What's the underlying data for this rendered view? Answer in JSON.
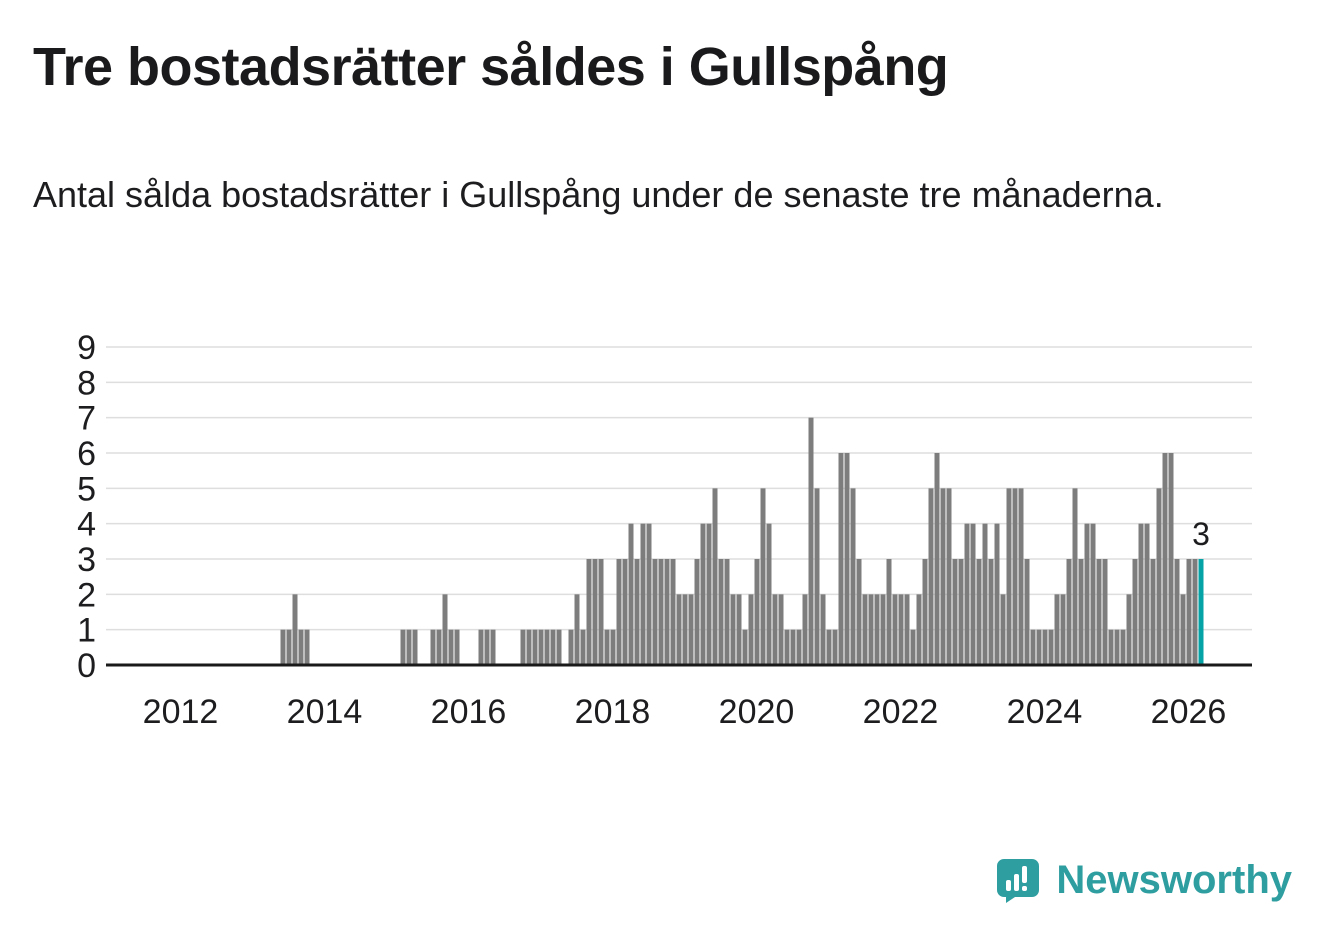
{
  "page": {
    "title": "Tre bostadsrätter såldes i Gullspång",
    "subtitle": "Antal sålda bostadsrätter i Gullspång under de senaste tre månaderna."
  },
  "chart_data": {
    "type": "bar",
    "title": "Tre bostadsrätter såldes i Gullspång",
    "subtitle": "Antal sålda bostadsrätter i Gullspång under de senaste tre månaderna.",
    "x_start": "2011-01",
    "x_freq": "monthly",
    "ylabel": "",
    "xlabel": "",
    "ylim": [
      0,
      9
    ],
    "yticks": [
      0,
      1,
      2,
      3,
      4,
      5,
      6,
      7,
      8,
      9
    ],
    "xticks": [
      2012,
      2014,
      2016,
      2018,
      2020,
      2022,
      2024,
      2026
    ],
    "grid": "horizontal",
    "bar_color": "#7d7d7d",
    "highlight_color": "#06a3a6",
    "highlight_last": true,
    "last_value_label": "3",
    "values_by_year": {
      "2011": [
        0,
        0,
        0,
        0,
        0,
        0,
        0,
        0,
        0,
        0,
        0,
        0
      ],
      "2012": [
        0,
        0,
        0,
        0,
        0,
        0,
        0,
        0,
        0,
        0,
        0,
        0
      ],
      "2013": [
        0,
        0,
        0,
        0,
        0,
        1,
        1,
        2,
        1,
        1,
        0,
        0
      ],
      "2014": [
        0,
        0,
        0,
        0,
        0,
        0,
        0,
        0,
        0,
        0,
        0,
        0
      ],
      "2015": [
        0,
        1,
        1,
        1,
        0,
        0,
        1,
        1,
        2,
        1,
        1,
        0
      ],
      "2016": [
        0,
        0,
        1,
        1,
        1,
        0,
        0,
        0,
        0,
        1,
        1,
        1
      ],
      "2017": [
        1,
        1,
        1,
        1,
        0,
        1,
        2,
        1,
        3,
        3,
        3,
        1
      ],
      "2018": [
        1,
        3,
        3,
        4,
        3,
        4,
        4,
        3,
        3,
        3,
        3,
        2
      ],
      "2019": [
        2,
        2,
        3,
        4,
        4,
        5,
        3,
        3,
        2,
        2,
        1,
        2
      ],
      "2020": [
        3,
        5,
        4,
        2,
        2,
        1,
        1,
        1,
        2,
        7,
        5,
        2
      ],
      "2021": [
        1,
        1,
        6,
        6,
        5,
        3,
        2,
        2,
        2,
        2,
        3,
        2
      ],
      "2022": [
        2,
        2,
        1,
        2,
        3,
        5,
        6,
        5,
        5,
        3,
        3,
        4
      ],
      "2023": [
        4,
        3,
        4,
        3,
        4,
        2,
        5,
        5,
        5,
        3,
        1,
        1
      ],
      "2024": [
        1,
        1,
        2,
        2,
        3,
        5,
        3,
        4,
        4,
        3,
        3,
        1
      ],
      "2025": [
        1,
        1,
        2,
        3,
        4,
        4,
        3,
        5,
        6,
        6,
        3,
        2
      ],
      "2026": [
        3,
        3,
        3
      ]
    }
  },
  "footer": {
    "brand": "Newsworthy",
    "brand_color": "#2f9ea0"
  }
}
